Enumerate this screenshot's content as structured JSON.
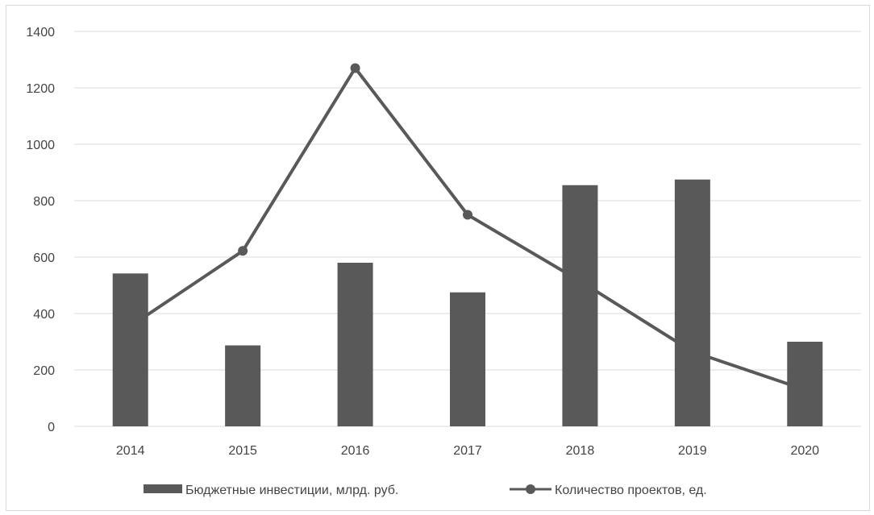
{
  "chart_data": {
    "type": "bar",
    "categories": [
      "2014",
      "2015",
      "2016",
      "2017",
      "2018",
      "2019",
      "2020"
    ],
    "series": [
      {
        "name": "Бюджетные инвестиции, млрд. руб.",
        "kind": "bar",
        "color": "#595959",
        "values": [
          542,
          287,
          580,
          475,
          855,
          875,
          300
        ]
      },
      {
        "name": "Количество проектов, ед.",
        "kind": "line",
        "color": "#595959",
        "values": [
          355,
          622,
          1270,
          750,
          515,
          265,
          130
        ]
      }
    ],
    "ylim": [
      0,
      1400
    ],
    "yticks": [
      "0",
      "200",
      "400",
      "600",
      "800",
      "1000",
      "1200",
      "1400"
    ],
    "grid": true,
    "legend_position": "bottom"
  }
}
